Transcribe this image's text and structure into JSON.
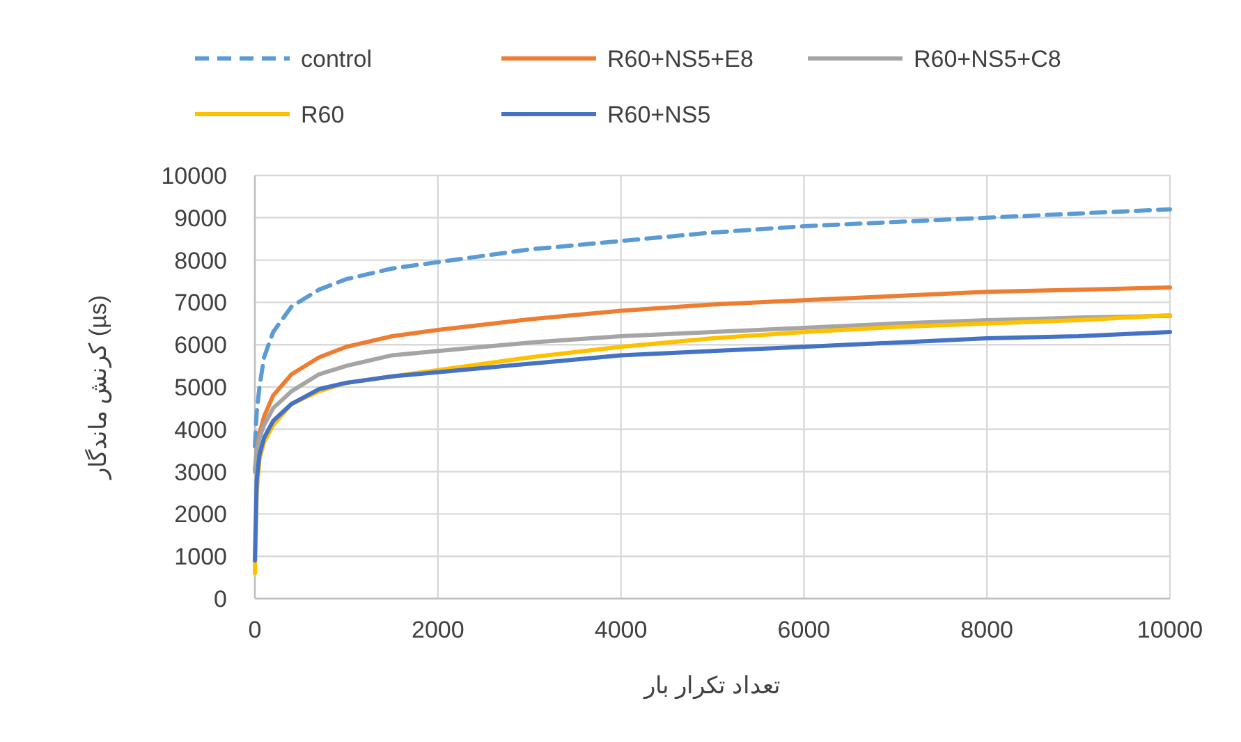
{
  "chart_data": {
    "type": "line",
    "xlabel": "تعداد تکرار بار",
    "ylabel": "کرنش ماندگار (µs)",
    "xlim": [
      0,
      10000
    ],
    "xticks": [
      0,
      2000,
      4000,
      6000,
      8000,
      10000
    ],
    "ylim": [
      0,
      10000
    ],
    "yticks": [
      0,
      1000,
      2000,
      3000,
      4000,
      5000,
      6000,
      7000,
      8000,
      9000,
      10000
    ],
    "grid": true,
    "legend": "top",
    "marker": "none",
    "x": [
      0,
      20,
      50,
      100,
      200,
      400,
      700,
      1000,
      1500,
      2000,
      3000,
      4000,
      5000,
      6000,
      7000,
      8000,
      9000,
      10000
    ],
    "series": [
      {
        "name": "control",
        "color": "#5b9bd5",
        "line_style": "dashed",
        "values": [
          3600,
          4400,
          5000,
          5700,
          6300,
          6900,
          7300,
          7550,
          7800,
          7950,
          8250,
          8450,
          8650,
          8800,
          8900,
          9000,
          9100,
          9200
        ]
      },
      {
        "name": "R60+NS5+E8",
        "color": "#ed7d31",
        "line_style": "solid",
        "values": [
          3000,
          3500,
          3900,
          4300,
          4800,
          5300,
          5700,
          5950,
          6200,
          6350,
          6600,
          6800,
          6950,
          7050,
          7150,
          7250,
          7300,
          7350
        ]
      },
      {
        "name": "R60+NS5+C8",
        "color": "#a5a5a5",
        "line_style": "solid",
        "values": [
          3000,
          3500,
          3800,
          4100,
          4500,
          4900,
          5300,
          5500,
          5750,
          5850,
          6050,
          6200,
          6300,
          6400,
          6500,
          6580,
          6640,
          6680
        ]
      },
      {
        "name": "R60",
        "color": "#ffc000",
        "line_style": "solid",
        "values": [
          600,
          2500,
          3300,
          3700,
          4100,
          4600,
          4900,
          5100,
          5250,
          5400,
          5700,
          5950,
          6150,
          6300,
          6420,
          6500,
          6580,
          6700
        ]
      },
      {
        "name": "R60+NS5",
        "color": "#4472c4",
        "line_style": "solid",
        "values": [
          900,
          2800,
          3400,
          3800,
          4200,
          4600,
          4950,
          5100,
          5250,
          5350,
          5550,
          5750,
          5850,
          5950,
          6050,
          6150,
          6200,
          6300
        ]
      }
    ]
  }
}
